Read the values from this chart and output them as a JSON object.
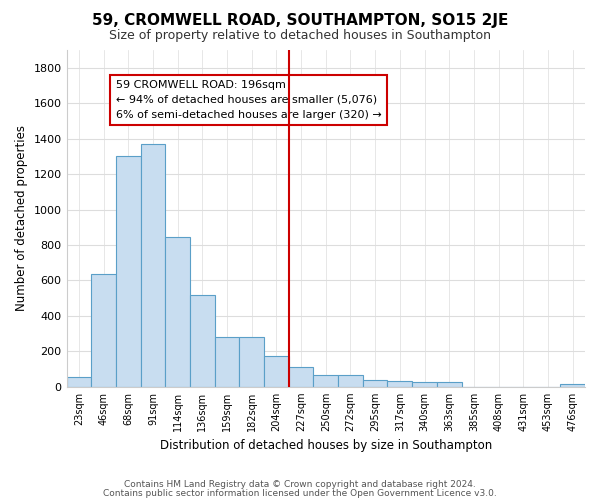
{
  "title": "59, CROMWELL ROAD, SOUTHAMPTON, SO15 2JE",
  "subtitle": "Size of property relative to detached houses in Southampton",
  "xlabel": "Distribution of detached houses by size in Southampton",
  "ylabel": "Number of detached properties",
  "bar_labels": [
    "23sqm",
    "46sqm",
    "68sqm",
    "91sqm",
    "114sqm",
    "136sqm",
    "159sqm",
    "182sqm",
    "204sqm",
    "227sqm",
    "250sqm",
    "272sqm",
    "295sqm",
    "317sqm",
    "340sqm",
    "363sqm",
    "385sqm",
    "408sqm",
    "431sqm",
    "453sqm",
    "476sqm"
  ],
  "bar_values": [
    55,
    637,
    1300,
    1370,
    843,
    520,
    280,
    280,
    175,
    110,
    65,
    65,
    40,
    35,
    25,
    25,
    0,
    0,
    0,
    0,
    15
  ],
  "bar_color": "#c8ddf0",
  "bar_edgecolor": "#5a9fc8",
  "ylim": [
    0,
    1900
  ],
  "yticks": [
    0,
    200,
    400,
    600,
    800,
    1000,
    1200,
    1400,
    1600,
    1800
  ],
  "vline_x": 8.5,
  "vline_color": "#cc0000",
  "annotation_title": "59 CROMWELL ROAD: 196sqm",
  "annotation_line1": "← 94% of detached houses are smaller (5,076)",
  "annotation_line2": "6% of semi-detached houses are larger (320) →",
  "annotation_box_color": "#cc0000",
  "footer_line1": "Contains HM Land Registry data © Crown copyright and database right 2024.",
  "footer_line2": "Contains public sector information licensed under the Open Government Licence v3.0.",
  "bg_color": "#ffffff",
  "plot_bg_color": "#ffffff",
  "grid_color": "#dddddd"
}
